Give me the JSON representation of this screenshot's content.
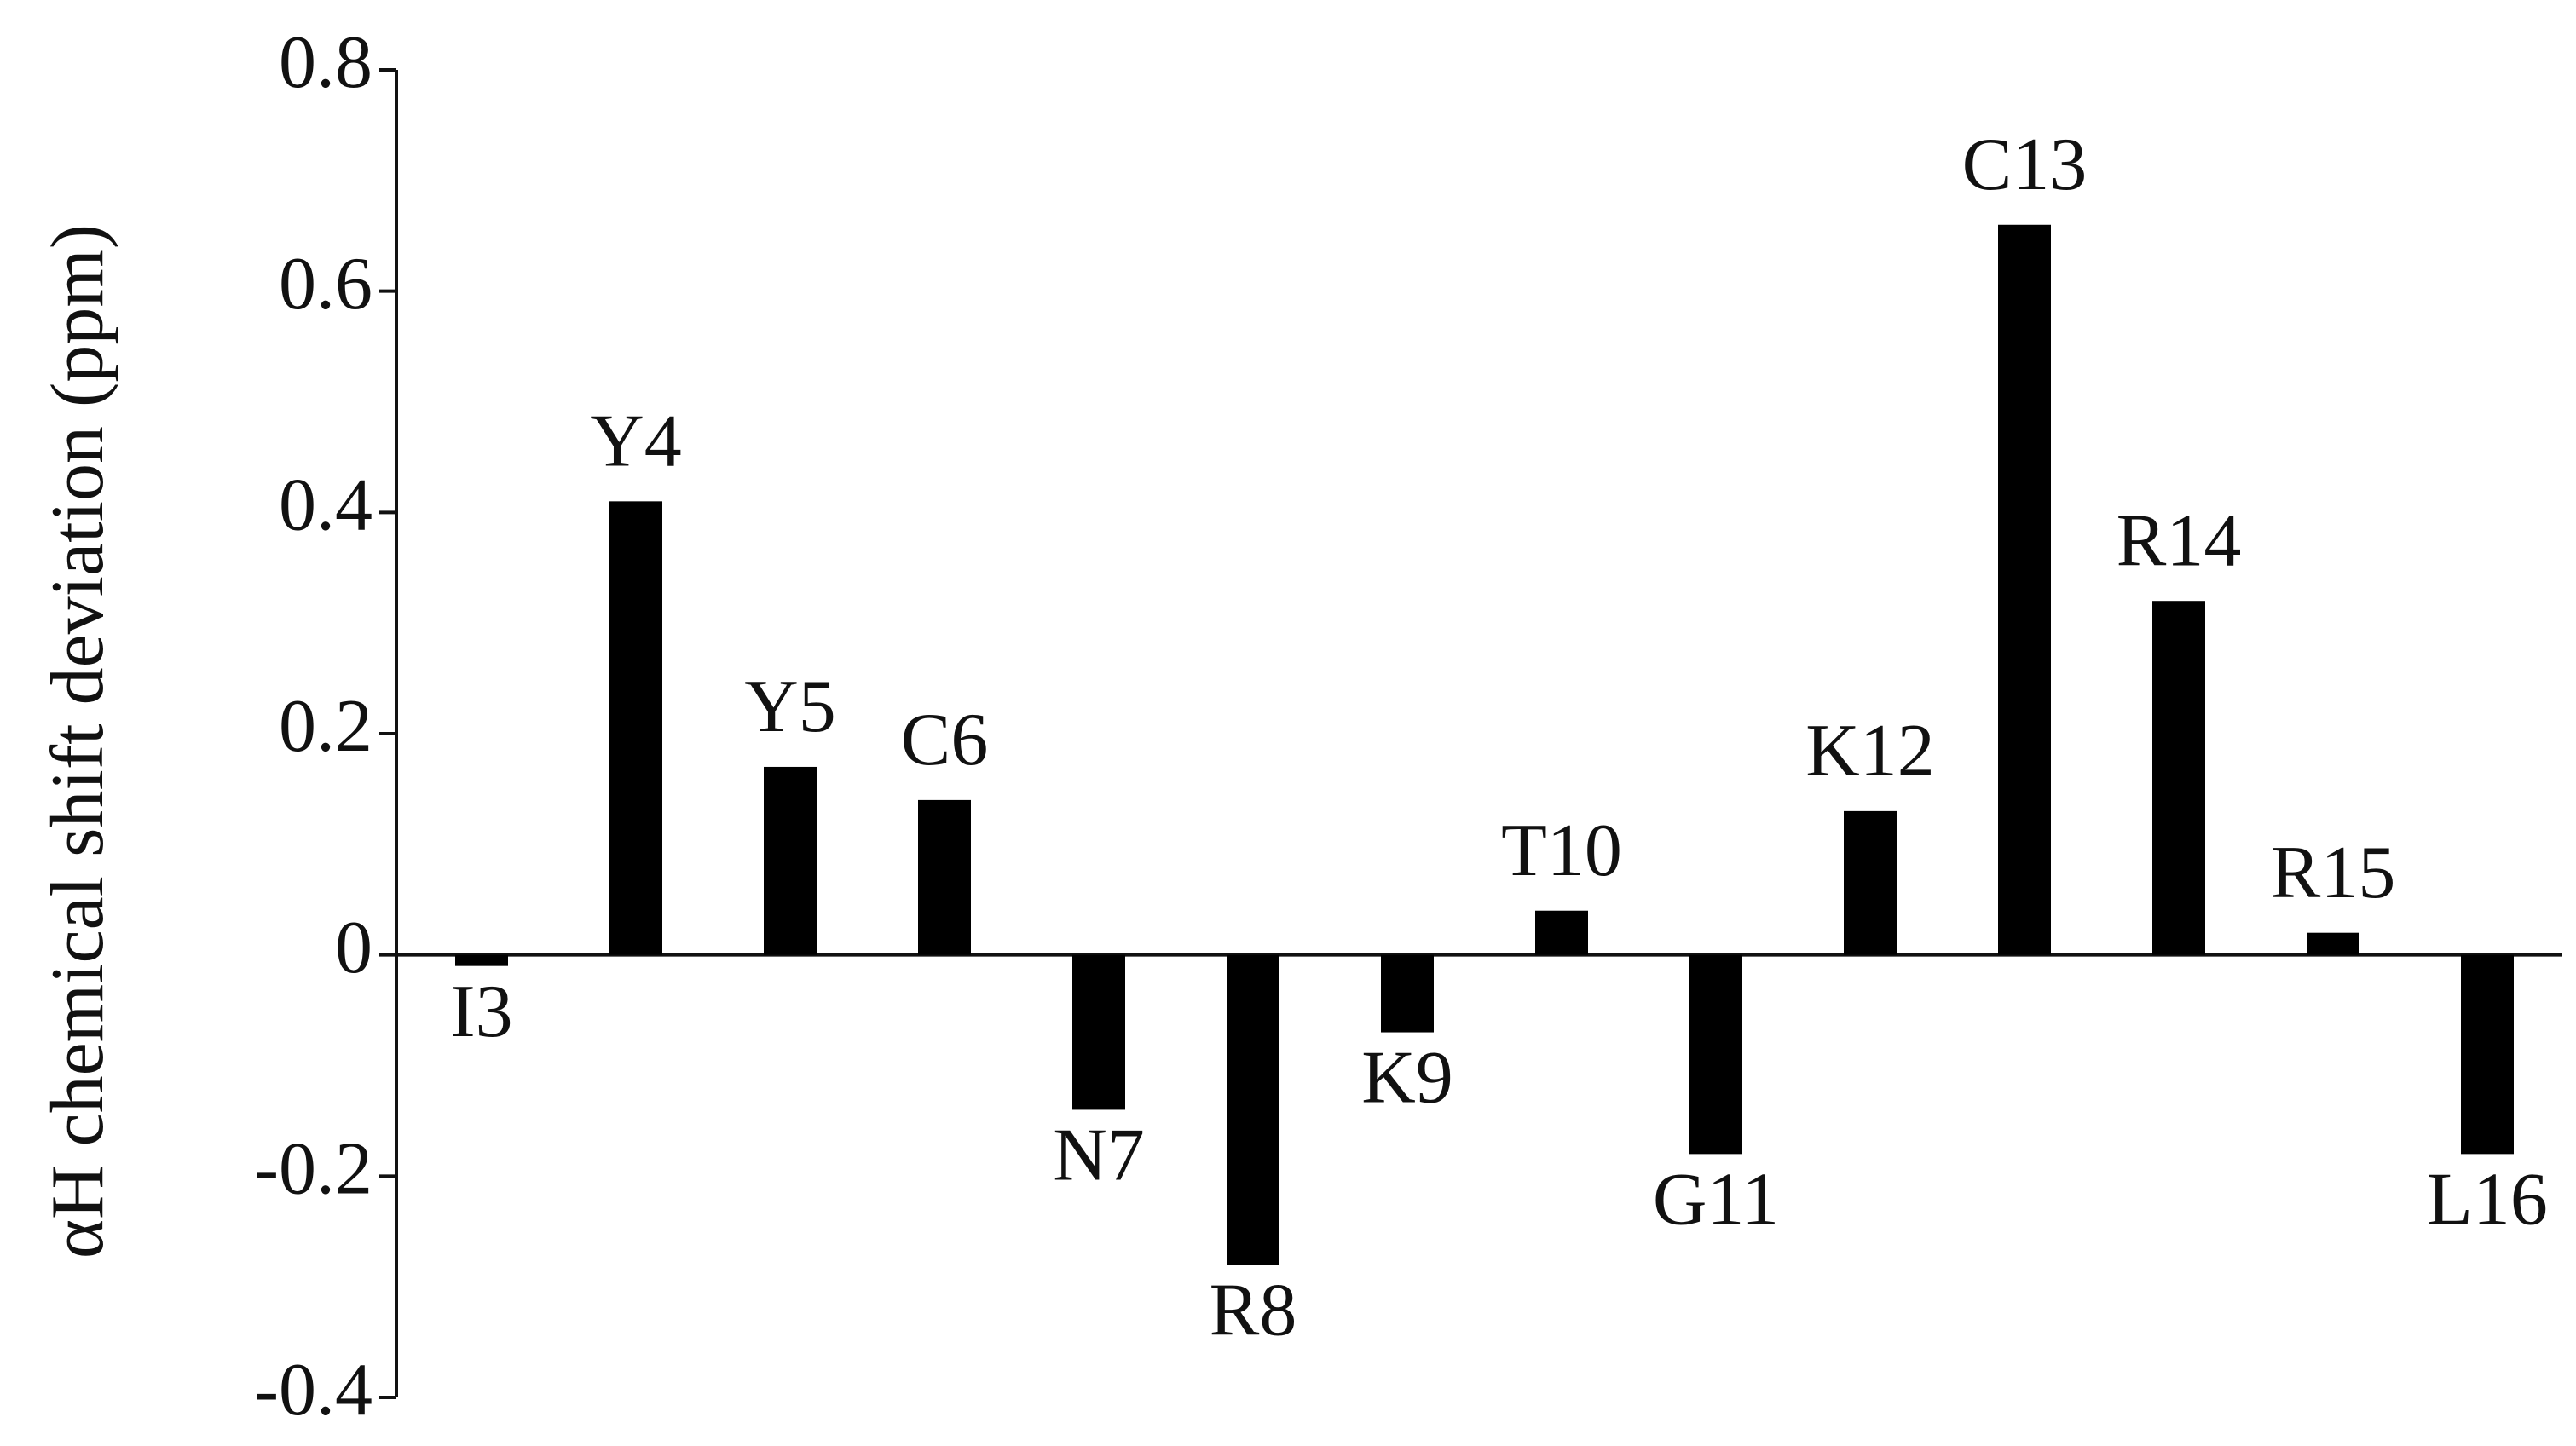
{
  "chart_data": {
    "type": "bar",
    "y_label": "αH chemical shift deviation (ppm)",
    "categories": [
      "I3",
      "Y4",
      "Y5",
      "C6",
      "N7",
      "R8",
      "K9",
      "T10",
      "G11",
      "K12",
      "C13",
      "R14",
      "R15",
      "L16"
    ],
    "values": [
      -0.01,
      0.41,
      0.17,
      0.14,
      -0.14,
      -0.28,
      -0.07,
      0.04,
      -0.18,
      0.13,
      0.66,
      0.32,
      0.02,
      -0.18
    ],
    "color": "#000000",
    "ylim": [
      -0.4,
      0.8
    ],
    "yticks": [
      -0.4,
      -0.2,
      0,
      0.2,
      0.4,
      0.6,
      0.8
    ],
    "grid": false
  }
}
